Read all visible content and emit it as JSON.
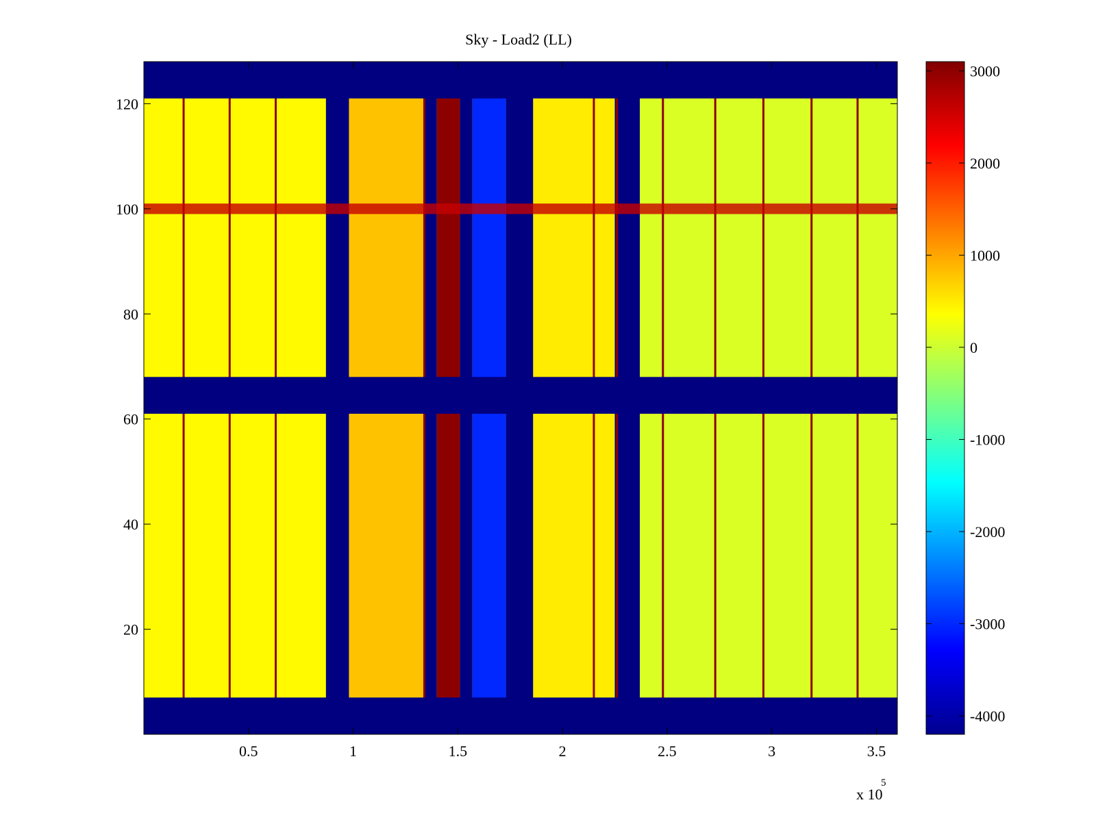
{
  "chart_data": {
    "type": "heatmap",
    "title": "Sky - Load2 (LL)",
    "xlabel": "",
    "ylabel": "",
    "x_multiplier_label": "x 10",
    "x_multiplier_exponent": "5",
    "xlim": [
      0,
      360000
    ],
    "ylim": [
      0,
      128
    ],
    "x_ticks": [
      {
        "value": 50000,
        "label": "0.5"
      },
      {
        "value": 100000,
        "label": "1"
      },
      {
        "value": 150000,
        "label": "1.5"
      },
      {
        "value": 200000,
        "label": "2"
      },
      {
        "value": 250000,
        "label": "2.5"
      },
      {
        "value": 300000,
        "label": "3"
      },
      {
        "value": 350000,
        "label": "3.5"
      }
    ],
    "y_ticks": [
      {
        "value": 20,
        "label": "20"
      },
      {
        "value": 40,
        "label": "40"
      },
      {
        "value": 60,
        "label": "60"
      },
      {
        "value": 80,
        "label": "80"
      },
      {
        "value": 100,
        "label": "100"
      },
      {
        "value": 120,
        "label": "120"
      }
    ],
    "colorbar": {
      "colormap": "jet",
      "clim": [
        -4200,
        3100
      ],
      "ticks": [
        {
          "value": 3000,
          "label": "3000"
        },
        {
          "value": 2000,
          "label": "2000"
        },
        {
          "value": 1000,
          "label": "1000"
        },
        {
          "value": 0,
          "label": "0"
        },
        {
          "value": -1000,
          "label": "-1000"
        },
        {
          "value": -2000,
          "label": "-2000"
        },
        {
          "value": -3000,
          "label": "-3000"
        },
        {
          "value": -4000,
          "label": "-4000"
        }
      ]
    },
    "background_value": 300,
    "masked_value": -4200,
    "masked_channel_ranges": [
      [
        0,
        7
      ],
      [
        61,
        68
      ],
      [
        121,
        128
      ]
    ],
    "column_regions": [
      {
        "x": [
          0,
          87000
        ],
        "value": 400
      },
      {
        "x": [
          87000,
          98000
        ],
        "value": -4200
      },
      {
        "x": [
          98000,
          134000
        ],
        "value": 800
      },
      {
        "x": [
          134000,
          140000
        ],
        "value": -4200
      },
      {
        "x": [
          140000,
          151000
        ],
        "value": 3000
      },
      {
        "x": [
          151000,
          157000
        ],
        "value": -4200
      },
      {
        "x": [
          157000,
          173000
        ],
        "value": -3000
      },
      {
        "x": [
          173000,
          186000
        ],
        "value": -4200
      },
      {
        "x": [
          186000,
          225000
        ],
        "value": 500
      },
      {
        "x": [
          225000,
          237000
        ],
        "value": -4200
      },
      {
        "x": [
          237000,
          360000
        ],
        "value": 100
      }
    ],
    "spike_lines_x": [
      19000,
      41000,
      63000,
      134000,
      215000,
      226000,
      248000,
      273000,
      296000,
      319000,
      341000
    ],
    "rfi_channel": 100
  }
}
